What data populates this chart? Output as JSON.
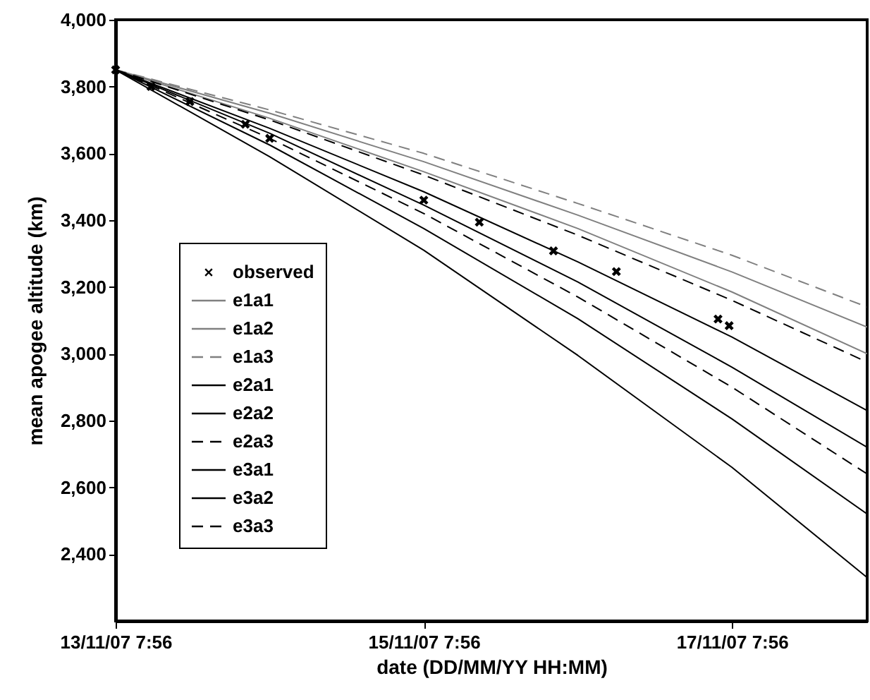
{
  "chart_data": {
    "type": "line",
    "xlabel": "date (DD/MM/YY HH:MM)",
    "ylabel": "mean apogee altitude (km)",
    "xlim": [
      "--11-13T07:56",
      "--11-18T05:00"
    ],
    "xticks": [
      {
        "value": "--11-13T07:56",
        "label": "13/11/07 7:56"
      },
      {
        "value": "--11-15T07:56",
        "label": "15/11/07 7:56"
      },
      {
        "value": "--11-17T07:56",
        "label": "17/11/07 7:56"
      }
    ],
    "ylim": [
      2200,
      4000
    ],
    "yticks": [
      {
        "value": 2400,
        "label": "2,400"
      },
      {
        "value": 2600,
        "label": "2,600"
      },
      {
        "value": 2800,
        "label": "2,800"
      },
      {
        "value": 3000,
        "label": "3,000"
      },
      {
        "value": 3200,
        "label": "3,200"
      },
      {
        "value": 3400,
        "label": "3,400"
      },
      {
        "value": 3600,
        "label": "3,600"
      },
      {
        "value": 3800,
        "label": "3,800"
      },
      {
        "value": 4000,
        "label": "4,000"
      }
    ],
    "grid": false,
    "legend": "bottom left",
    "x": [
      "--11-13T07:56",
      "--11-14T07:56",
      "--11-15T07:56",
      "--11-16T07:56",
      "--11-17T07:56",
      "--11-18T05:00"
    ],
    "series": [
      {
        "name": "observed",
        "type": "scatter",
        "marker": "cross",
        "color": "#000000",
        "x": [
          "--11-13T07:56",
          "--11-13T13:26",
          "--11-13T19:30",
          "--11-14T04:08",
          "--11-14T07:56",
          "--11-15T07:56",
          "--11-15T16:35",
          "--11-16T04:08",
          "--11-16T13:56",
          "--11-17T05:46",
          "--11-17T07:30"
        ],
        "values": [
          3850,
          3800,
          3755,
          3687,
          3645,
          3460,
          3394,
          3308,
          3246,
          3104,
          3084
        ]
      },
      {
        "name": "e1a1",
        "type": "line",
        "line_style": "solid",
        "color": "#808080",
        "values": [
          3850,
          3720,
          3575,
          3415,
          3245,
          3080
        ]
      },
      {
        "name": "e1a2",
        "type": "line",
        "line_style": "solid",
        "color": "#808080",
        "values": [
          3850,
          3705,
          3545,
          3375,
          3185,
          3000
        ]
      },
      {
        "name": "e1a3",
        "type": "line",
        "line_style": "dashed",
        "color": "#808080",
        "values": [
          3850,
          3730,
          3600,
          3450,
          3295,
          3140
        ]
      },
      {
        "name": "e2a1",
        "type": "line",
        "line_style": "solid",
        "color": "#000000",
        "values": [
          3850,
          3675,
          3485,
          3275,
          3050,
          2830
        ]
      },
      {
        "name": "e2a2",
        "type": "line",
        "line_style": "solid",
        "color": "#000000",
        "values": [
          3850,
          3660,
          3445,
          3215,
          2960,
          2720
        ]
      },
      {
        "name": "e2a3",
        "type": "line",
        "line_style": "dashed",
        "color": "#000000",
        "values": [
          3850,
          3700,
          3535,
          3355,
          3160,
          2975
        ]
      },
      {
        "name": "e3a1",
        "type": "line",
        "line_style": "solid",
        "color": "#000000",
        "values": [
          3850,
          3625,
          3375,
          3105,
          2805,
          2520
        ]
      },
      {
        "name": "e3a2",
        "type": "line",
        "line_style": "solid",
        "color": "#000000",
        "values": [
          3850,
          3590,
          3310,
          2995,
          2660,
          2330
        ]
      },
      {
        "name": "e3a3",
        "type": "line",
        "line_style": "dashed",
        "color": "#000000",
        "values": [
          3850,
          3645,
          3420,
          3170,
          2900,
          2640
        ]
      }
    ]
  }
}
